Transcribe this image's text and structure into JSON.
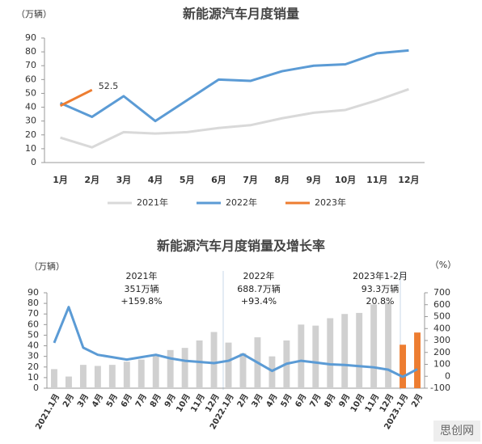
{
  "chart_data": [
    {
      "type": "line",
      "title": "新能源汽车月度销量",
      "y_unit_label": "（万辆）",
      "categories": [
        "1月",
        "2月",
        "3月",
        "4月",
        "5月",
        "6月",
        "7月",
        "8月",
        "9月",
        "10月",
        "11月",
        "12月"
      ],
      "series": [
        {
          "name": "2021年",
          "color": "#d9d9d9",
          "values": [
            18,
            11,
            22,
            21,
            22,
            25,
            27,
            32,
            36,
            38,
            45,
            53
          ]
        },
        {
          "name": "2022年",
          "color": "#5b9bd5",
          "values": [
            43,
            33,
            48,
            30,
            45,
            60,
            59,
            66,
            70,
            71,
            79,
            81
          ]
        },
        {
          "name": "2023年",
          "color": "#ed7d31",
          "values": [
            41,
            52.5,
            null,
            null,
            null,
            null,
            null,
            null,
            null,
            null,
            null,
            null
          ],
          "value_labels": [
            null,
            "52.5",
            null,
            null,
            null,
            null,
            null,
            null,
            null,
            null,
            null,
            null
          ]
        }
      ],
      "ylim": [
        0,
        90
      ],
      "yticks": [
        0,
        10,
        20,
        30,
        40,
        50,
        60,
        70,
        80,
        90
      ],
      "legend": "bottom"
    },
    {
      "type": "combo",
      "title": "新能源汽车月度销量及增长率",
      "y_unit_label": "（万辆）",
      "y2_unit_label": "（%）",
      "categories": [
        "2021.1月",
        "2月",
        "3月",
        "4月",
        "5月",
        "6月",
        "7月",
        "8月",
        "9月",
        "10月",
        "11月",
        "12月",
        "2022.1月",
        "2月",
        "3月",
        "4月",
        "5月",
        "6月",
        "7月",
        "8月",
        "9月",
        "10月",
        "11月",
        "12月",
        "2023.1月",
        "2月"
      ],
      "series": [
        {
          "type": "bar",
          "color": "#d0d0d0",
          "values": [
            18,
            11,
            22,
            21,
            22,
            25,
            27,
            32,
            36,
            38,
            45,
            53,
            43,
            33,
            48,
            30,
            45,
            60,
            59,
            66,
            70,
            71,
            79,
            81,
            null,
            null
          ]
        },
        {
          "type": "bar",
          "color": "#ed7d31",
          "values": [
            null,
            null,
            null,
            null,
            null,
            null,
            null,
            null,
            null,
            null,
            null,
            null,
            null,
            null,
            null,
            null,
            null,
            null,
            null,
            null,
            null,
            null,
            null,
            null,
            41,
            52.5
          ]
        },
        {
          "type": "line",
          "axis": "y2",
          "color": "#5b9bd5",
          "values": [
            280,
            580,
            240,
            180,
            160,
            140,
            160,
            180,
            150,
            130,
            120,
            110,
            130,
            185,
            115,
            45,
            105,
            130,
            115,
            100,
            95,
            85,
            75,
            55,
            -5,
            60
          ]
        }
      ],
      "ylim": [
        0,
        90
      ],
      "yticks": [
        0,
        10,
        20,
        30,
        40,
        50,
        60,
        70,
        80,
        90
      ],
      "y2lim": [
        -100,
        700
      ],
      "y2ticks": [
        -100,
        0,
        100,
        200,
        300,
        400,
        500,
        600,
        700
      ],
      "annotations": [
        "2021年",
        "351万辆",
        "+159.8%",
        "2022年",
        "688.7万辆",
        "+93.4%",
        "2023年1-2月",
        "93.3万辆",
        "20.8%"
      ]
    }
  ],
  "watermark": "思创网"
}
